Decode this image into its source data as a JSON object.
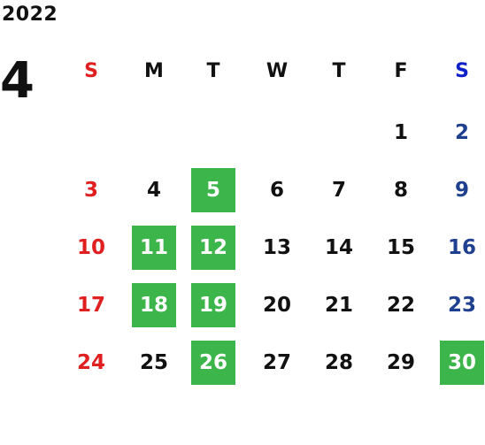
{
  "calendar": {
    "year": "2022",
    "month": "4",
    "weekdays": [
      "S",
      "M",
      "T",
      "W",
      "T",
      "F",
      "S"
    ],
    "weekday_colors": [
      "#e02020",
      "#111111",
      "#111111",
      "#111111",
      "#111111",
      "#111111",
      "#1020c8"
    ],
    "day_colors": [
      "#e02020",
      "#111111",
      "#111111",
      "#111111",
      "#111111",
      "#111111",
      "#1f3f8f"
    ],
    "highlight_color": "#3cb54a",
    "first_weekday_index": 5,
    "days_in_month": 30,
    "highlighted_days": [
      5,
      11,
      12,
      18,
      19,
      26,
      30
    ]
  }
}
